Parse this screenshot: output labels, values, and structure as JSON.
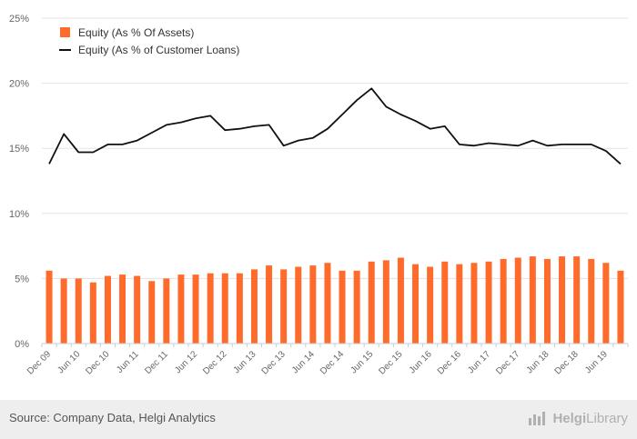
{
  "colors": {
    "bar": "#ff6b2b",
    "line": "#111111",
    "grid": "#e3e3e3",
    "axis_text": "#666666"
  },
  "chart_data": {
    "type": "bar+line",
    "title": "",
    "xlabel": "",
    "ylabel": "",
    "ylim": [
      0,
      25
    ],
    "yticks": [
      "0%",
      "5%",
      "10%",
      "15%",
      "20%",
      "25%"
    ],
    "grid": true,
    "legend_position": "top-left",
    "categories": [
      "Dec 09",
      "Mar 10",
      "Jun 10",
      "Sep 10",
      "Dec 10",
      "Mar 11",
      "Jun 11",
      "Sep 11",
      "Dec 11",
      "Mar 12",
      "Jun 12",
      "Sep 12",
      "Dec 12",
      "Mar 13",
      "Jun 13",
      "Sep 13",
      "Dec 13",
      "Mar 14",
      "Jun 14",
      "Sep 14",
      "Dec 14",
      "Mar 15",
      "Jun 15",
      "Sep 15",
      "Dec 15",
      "Mar 16",
      "Jun 16",
      "Sep 16",
      "Dec 16",
      "Mar 17",
      "Jun 17",
      "Sep 17",
      "Dec 17",
      "Mar 18",
      "Jun 18",
      "Sep 18",
      "Dec 18",
      "Mar 19",
      "Jun 19",
      "Sep 19"
    ],
    "tick_labels": [
      "Dec 09",
      "Jun 10",
      "Dec 10",
      "Jun 11",
      "Dec 11",
      "Jun 12",
      "Dec 12",
      "Jun 13",
      "Dec 13",
      "Jun 14",
      "Dec 14",
      "Jun 15",
      "Dec 15",
      "Jun 16",
      "Dec 16",
      "Jun 17",
      "Dec 17",
      "Jun 18",
      "Dec 18",
      "Jun 19"
    ],
    "series": [
      {
        "name": "Equity (As % Of Assets)",
        "type": "bar",
        "values": [
          5.6,
          5.0,
          5.0,
          4.7,
          5.2,
          5.3,
          5.2,
          4.8,
          5.0,
          5.3,
          5.3,
          5.4,
          5.4,
          5.4,
          5.7,
          6.0,
          5.7,
          5.9,
          6.0,
          6.2,
          5.6,
          5.6,
          6.3,
          6.4,
          6.6,
          6.1,
          5.9,
          6.3,
          6.1,
          6.2,
          6.3,
          6.5,
          6.6,
          6.7,
          6.5,
          6.7,
          6.7,
          6.5,
          6.2,
          5.6
        ]
      },
      {
        "name": "Equity (As % of Customer Loans)",
        "type": "line",
        "values": [
          13.8,
          16.1,
          14.7,
          14.7,
          15.3,
          15.3,
          15.6,
          16.2,
          16.8,
          17.0,
          17.3,
          17.5,
          16.4,
          16.5,
          16.7,
          16.8,
          15.2,
          15.6,
          15.8,
          16.5,
          17.6,
          18.7,
          19.6,
          18.2,
          17.6,
          17.1,
          16.5,
          16.7,
          15.3,
          15.2,
          15.4,
          15.3,
          15.2,
          15.6,
          15.2,
          15.3,
          15.3,
          15.3,
          14.8,
          13.8
        ]
      }
    ]
  },
  "footer": {
    "source": "Source: Company Data, Helgi Analytics",
    "logo_word1": "Helgi",
    "logo_word2": "Library"
  }
}
